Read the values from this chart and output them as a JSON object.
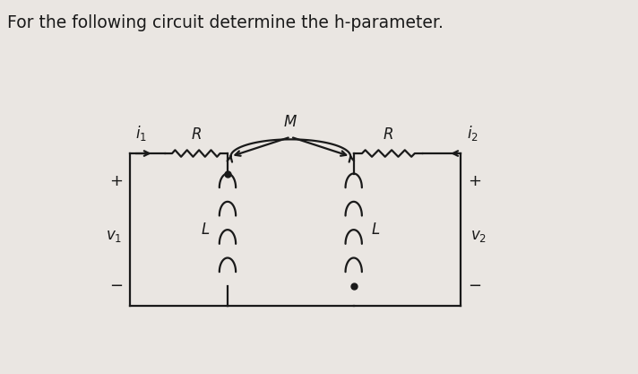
{
  "title": "For the following circuit determine the h-parameter.",
  "bg_color": "#eae6e2",
  "line_color": "#1a1a1a",
  "text_color": "#1a1a1a",
  "title_fontsize": 13.5,
  "label_fontsize": 12
}
